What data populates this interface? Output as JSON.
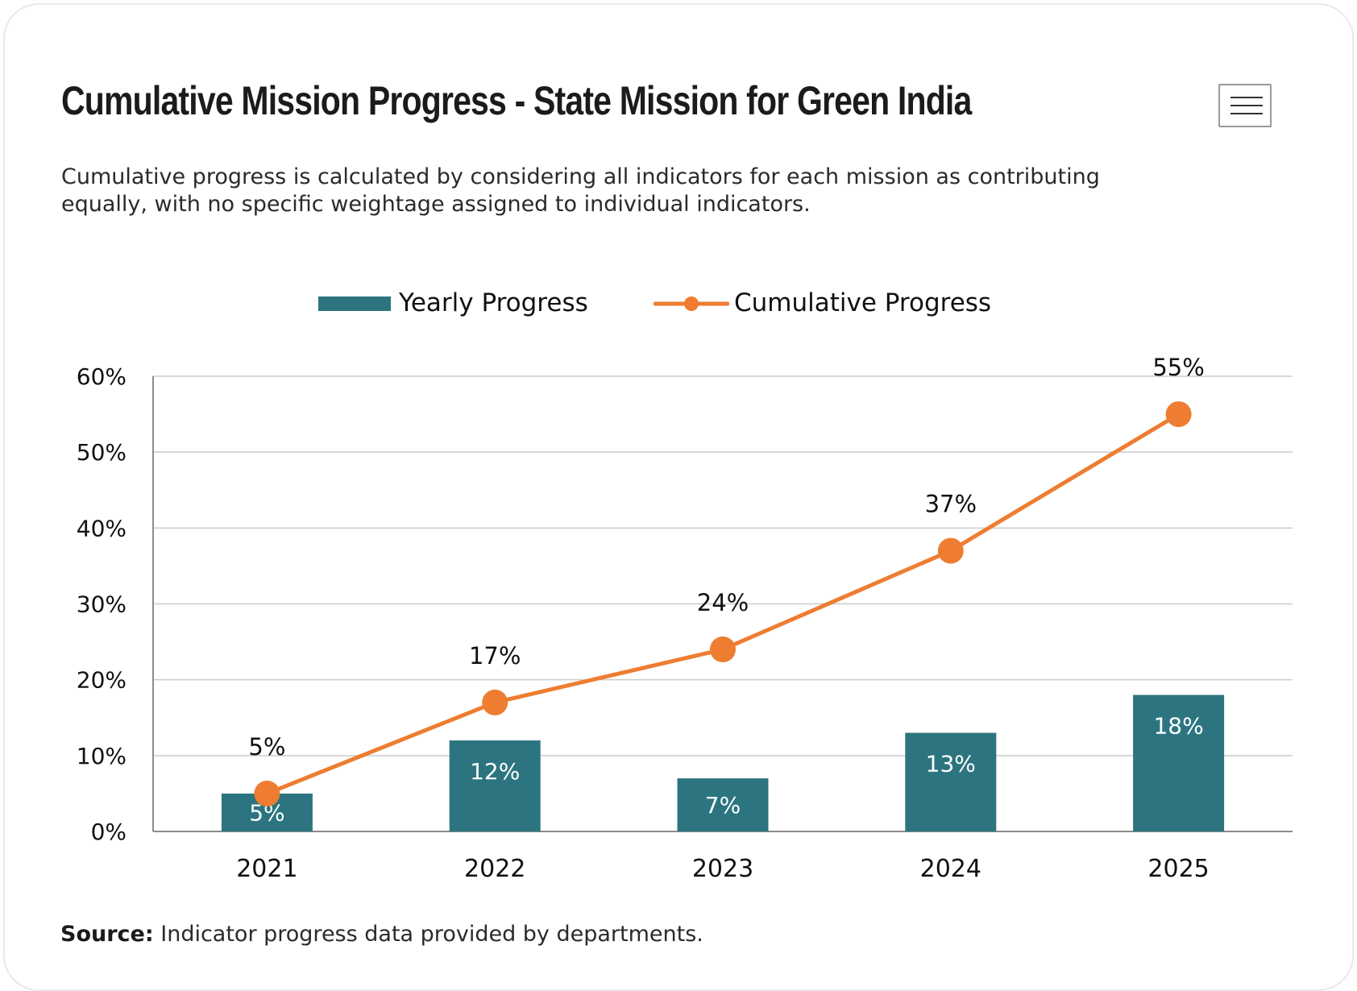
{
  "header": {
    "title": "Cumulative Mission Progress - State Mission for Green India",
    "subtitle": "Cumulative progress is calculated by considering all indicators for each mission as contributing equally, with no specific weightage assigned to individual indicators.",
    "menu_icon": "hamburger-menu-icon"
  },
  "legend": {
    "placement": "top-center",
    "items": [
      {
        "label": "Yearly Progress",
        "color": "#2c7580"
      },
      {
        "label": "Cumulative Progress",
        "color": "#ee7d31"
      }
    ]
  },
  "chart_data": {
    "type": "bar",
    "categories": [
      "2021",
      "2022",
      "2023",
      "2024",
      "2025"
    ],
    "series": [
      {
        "name": "Yearly Progress",
        "type": "bar",
        "values": [
          5,
          12,
          7,
          13,
          18
        ],
        "labels": [
          "5%",
          "12%",
          "7%",
          "13%",
          "18%"
        ],
        "color": "#2c7580"
      },
      {
        "name": "Cumulative Progress",
        "type": "line",
        "values": [
          5,
          17,
          24,
          37,
          55
        ],
        "labels": [
          "5%",
          "17%",
          "24%",
          "37%",
          "55%"
        ],
        "color": "#ee7d31"
      }
    ],
    "y_ticks": [
      "0%",
      "10%",
      "20%",
      "30%",
      "40%",
      "50%",
      "60%"
    ],
    "ylim": [
      0,
      60
    ],
    "grid": true
  },
  "footer": {
    "source_label": "Source:",
    "source_text": " Indicator progress data provided by departments."
  }
}
